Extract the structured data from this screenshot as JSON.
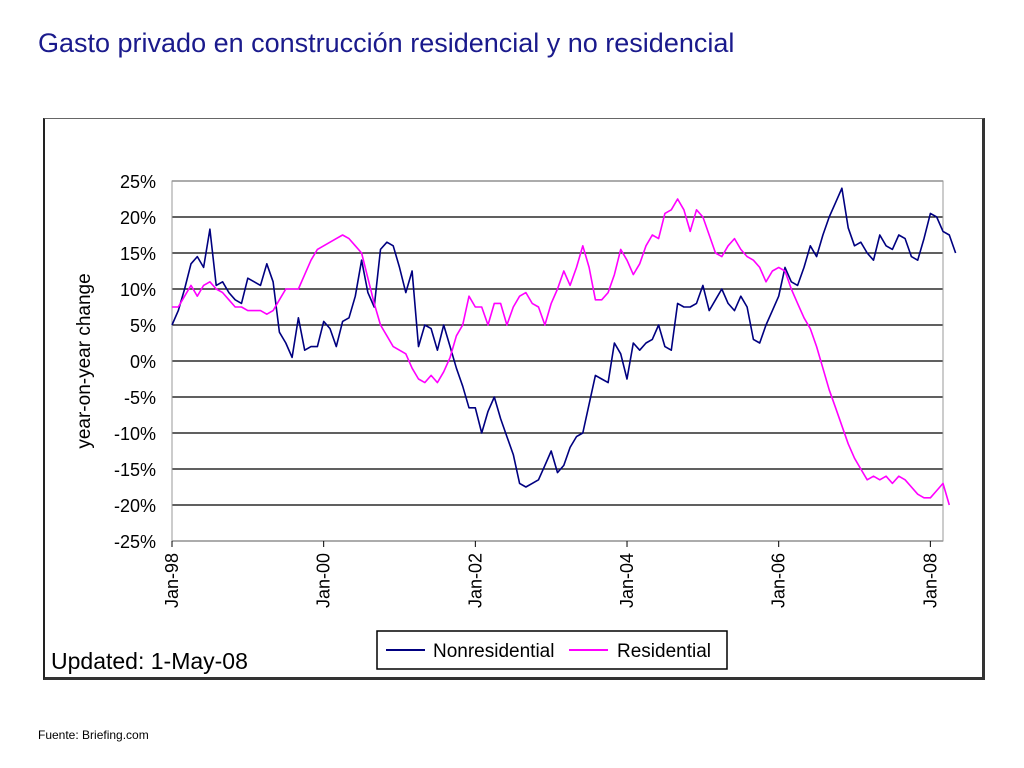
{
  "slide": {
    "title": "Gasto privado en construcción residencial y no residencial",
    "source": "Fuente: Briefing.com"
  },
  "chart_data": {
    "type": "line",
    "title": "",
    "xlabel": "",
    "ylabel": "year-on-year change",
    "ylim": [
      -25,
      25
    ],
    "xlim": [
      "1998-01",
      "2008-03"
    ],
    "y_ticks": [
      "25%",
      "20%",
      "15%",
      "10%",
      "5%",
      "0%",
      "-5%",
      "-10%",
      "-15%",
      "-20%",
      "-25%"
    ],
    "y_tick_values": [
      25,
      20,
      15,
      10,
      5,
      0,
      -5,
      -10,
      -15,
      -20,
      -25
    ],
    "x_ticks": [
      "Jan-98",
      "Jan-00",
      "Jan-02",
      "Jan-04",
      "Jan-06",
      "Jan-08"
    ],
    "x_tick_values": [
      "1998-01",
      "2000-01",
      "2002-01",
      "2004-01",
      "2006-01",
      "2008-01"
    ],
    "grid": true,
    "legend_position": "bottom-center",
    "annotation": "Updated:  1-May-08",
    "series": [
      {
        "name": "Nonresidential",
        "color": "#000080",
        "points": [
          [
            "1998-01",
            5
          ],
          [
            "1998-02",
            7
          ],
          [
            "1998-03",
            10
          ],
          [
            "1998-04",
            13.5
          ],
          [
            "1998-05",
            14.5
          ],
          [
            "1998-06",
            13
          ],
          [
            "1998-07",
            18.3
          ],
          [
            "1998-08",
            10.5
          ],
          [
            "1998-09",
            11
          ],
          [
            "1998-10",
            9.5
          ],
          [
            "1998-11",
            8.5
          ],
          [
            "1998-12",
            8
          ],
          [
            "1999-01",
            11.5
          ],
          [
            "1999-02",
            11
          ],
          [
            "1999-03",
            10.5
          ],
          [
            "1999-04",
            13.5
          ],
          [
            "1999-05",
            11
          ],
          [
            "1999-06",
            4
          ],
          [
            "1999-07",
            2.5
          ],
          [
            "1999-08",
            0.5
          ],
          [
            "1999-09",
            6
          ],
          [
            "1999-10",
            1.5
          ],
          [
            "1999-11",
            2
          ],
          [
            "1999-12",
            2
          ],
          [
            "2000-01",
            5.5
          ],
          [
            "2000-02",
            4.5
          ],
          [
            "2000-03",
            2
          ],
          [
            "2000-04",
            5.5
          ],
          [
            "2000-05",
            6
          ],
          [
            "2000-06",
            9
          ],
          [
            "2000-07",
            14
          ],
          [
            "2000-08",
            9.5
          ],
          [
            "2000-09",
            7.5
          ],
          [
            "2000-10",
            15.5
          ],
          [
            "2000-11",
            16.5
          ],
          [
            "2000-12",
            16
          ],
          [
            "2001-01",
            13
          ],
          [
            "2001-02",
            9.5
          ],
          [
            "2001-03",
            12.5
          ],
          [
            "2001-04",
            2
          ],
          [
            "2001-05",
            5
          ],
          [
            "2001-06",
            4.5
          ],
          [
            "2001-07",
            1.5
          ],
          [
            "2001-08",
            5
          ],
          [
            "2001-09",
            2
          ],
          [
            "2001-10",
            -1
          ],
          [
            "2001-11",
            -3.5
          ],
          [
            "2001-12",
            -6.5
          ],
          [
            "2002-01",
            -6.5
          ],
          [
            "2002-02",
            -10
          ],
          [
            "2002-03",
            -7
          ],
          [
            "2002-04",
            -5
          ],
          [
            "2002-05",
            -8
          ],
          [
            "2002-06",
            -10.5
          ],
          [
            "2002-07",
            -13
          ],
          [
            "2002-08",
            -17
          ],
          [
            "2002-09",
            -17.5
          ],
          [
            "2002-10",
            -17
          ],
          [
            "2002-11",
            -16.5
          ],
          [
            "2002-12",
            -14.5
          ],
          [
            "2003-01",
            -12.5
          ],
          [
            "2003-02",
            -15.5
          ],
          [
            "2003-03",
            -14.5
          ],
          [
            "2003-04",
            -12
          ],
          [
            "2003-05",
            -10.5
          ],
          [
            "2003-06",
            -10
          ],
          [
            "2003-07",
            -6
          ],
          [
            "2003-08",
            -2
          ],
          [
            "2003-09",
            -2.5
          ],
          [
            "2003-10",
            -3
          ],
          [
            "2003-11",
            2.5
          ],
          [
            "2003-12",
            1
          ],
          [
            "2004-01",
            -2.5
          ],
          [
            "2004-02",
            2.5
          ],
          [
            "2004-03",
            1.5
          ],
          [
            "2004-04",
            2.5
          ],
          [
            "2004-05",
            3
          ],
          [
            "2004-06",
            5
          ],
          [
            "2004-07",
            2
          ],
          [
            "2004-08",
            1.5
          ],
          [
            "2004-09",
            8
          ],
          [
            "2004-10",
            7.5
          ],
          [
            "2004-11",
            7.5
          ],
          [
            "2004-12",
            8
          ],
          [
            "2005-01",
            10.5
          ],
          [
            "2005-02",
            7
          ],
          [
            "2005-03",
            8.5
          ],
          [
            "2005-04",
            10
          ],
          [
            "2005-05",
            8
          ],
          [
            "2005-06",
            7
          ],
          [
            "2005-07",
            9
          ],
          [
            "2005-08",
            7.5
          ],
          [
            "2005-09",
            3
          ],
          [
            "2005-10",
            2.5
          ],
          [
            "2005-11",
            5
          ],
          [
            "2005-12",
            7
          ],
          [
            "2006-01",
            9
          ],
          [
            "2006-02",
            13
          ],
          [
            "2006-03",
            11
          ],
          [
            "2006-04",
            10.5
          ],
          [
            "2006-05",
            13
          ],
          [
            "2006-06",
            16
          ],
          [
            "2006-07",
            14.5
          ],
          [
            "2006-08",
            17.5
          ],
          [
            "2006-09",
            20
          ],
          [
            "2006-10",
            22
          ],
          [
            "2006-11",
            24
          ],
          [
            "2006-12",
            18.5
          ],
          [
            "2007-01",
            16
          ],
          [
            "2007-02",
            16.5
          ],
          [
            "2007-03",
            15
          ],
          [
            "2007-04",
            14
          ],
          [
            "2007-05",
            17.5
          ],
          [
            "2007-06",
            16
          ],
          [
            "2007-07",
            15.5
          ],
          [
            "2007-08",
            17.5
          ],
          [
            "2007-09",
            17
          ],
          [
            "2007-10",
            14.5
          ],
          [
            "2007-11",
            14
          ],
          [
            "2007-12",
            17
          ],
          [
            "2008-01",
            20.5
          ],
          [
            "2008-02",
            20
          ],
          [
            "2008-03",
            18
          ],
          [
            "2008-04",
            17.5
          ],
          [
            "2008-05",
            15
          ]
        ]
      },
      {
        "name": "Residential",
        "color": "#ff00ff",
        "points": [
          [
            "1998-01",
            7.5
          ],
          [
            "1998-02",
            7.5
          ],
          [
            "1998-03",
            9
          ],
          [
            "1998-04",
            10.5
          ],
          [
            "1998-05",
            9
          ],
          [
            "1998-06",
            10.5
          ],
          [
            "1998-07",
            11
          ],
          [
            "1998-08",
            10
          ],
          [
            "1998-09",
            9.5
          ],
          [
            "1998-10",
            8.5
          ],
          [
            "1998-11",
            7.5
          ],
          [
            "1998-12",
            7.5
          ],
          [
            "1999-01",
            7
          ],
          [
            "1999-02",
            7
          ],
          [
            "1999-03",
            7
          ],
          [
            "1999-04",
            6.5
          ],
          [
            "1999-05",
            7
          ],
          [
            "1999-06",
            8.5
          ],
          [
            "1999-07",
            10
          ],
          [
            "1999-08",
            10
          ],
          [
            "1999-09",
            10
          ],
          [
            "1999-10",
            12
          ],
          [
            "1999-11",
            14
          ],
          [
            "1999-12",
            15.5
          ],
          [
            "2000-01",
            16
          ],
          [
            "2000-02",
            16.5
          ],
          [
            "2000-03",
            17
          ],
          [
            "2000-04",
            17.5
          ],
          [
            "2000-05",
            17
          ],
          [
            "2000-06",
            16
          ],
          [
            "2000-07",
            15
          ],
          [
            "2000-08",
            11.5
          ],
          [
            "2000-09",
            8
          ],
          [
            "2000-10",
            5
          ],
          [
            "2000-11",
            3.5
          ],
          [
            "2000-12",
            2
          ],
          [
            "2001-01",
            1.5
          ],
          [
            "2001-02",
            1
          ],
          [
            "2001-03",
            -1
          ],
          [
            "2001-04",
            -2.5
          ],
          [
            "2001-05",
            -3
          ],
          [
            "2001-06",
            -2
          ],
          [
            "2001-07",
            -3
          ],
          [
            "2001-08",
            -1.5
          ],
          [
            "2001-09",
            0.5
          ],
          [
            "2001-10",
            3.5
          ],
          [
            "2001-11",
            5
          ],
          [
            "2001-12",
            9
          ],
          [
            "2002-01",
            7.5
          ],
          [
            "2002-02",
            7.5
          ],
          [
            "2002-03",
            5
          ],
          [
            "2002-04",
            8
          ],
          [
            "2002-05",
            8
          ],
          [
            "2002-06",
            5
          ],
          [
            "2002-07",
            7.5
          ],
          [
            "2002-08",
            9
          ],
          [
            "2002-09",
            9.5
          ],
          [
            "2002-10",
            8
          ],
          [
            "2002-11",
            7.5
          ],
          [
            "2002-12",
            5
          ],
          [
            "2003-01",
            8
          ],
          [
            "2003-02",
            10
          ],
          [
            "2003-03",
            12.5
          ],
          [
            "2003-04",
            10.5
          ],
          [
            "2003-05",
            13
          ],
          [
            "2003-06",
            16
          ],
          [
            "2003-07",
            13
          ],
          [
            "2003-08",
            8.5
          ],
          [
            "2003-09",
            8.5
          ],
          [
            "2003-10",
            9.5
          ],
          [
            "2003-11",
            12
          ],
          [
            "2003-12",
            15.5
          ],
          [
            "2004-01",
            14
          ],
          [
            "2004-02",
            12
          ],
          [
            "2004-03",
            13.5
          ],
          [
            "2004-04",
            16
          ],
          [
            "2004-05",
            17.5
          ],
          [
            "2004-06",
            17
          ],
          [
            "2004-07",
            20.5
          ],
          [
            "2004-08",
            21
          ],
          [
            "2004-09",
            22.5
          ],
          [
            "2004-10",
            21
          ],
          [
            "2004-11",
            18
          ],
          [
            "2004-12",
            21
          ],
          [
            "2005-01",
            20
          ],
          [
            "2005-02",
            17.5
          ],
          [
            "2005-03",
            15
          ],
          [
            "2005-04",
            14.5
          ],
          [
            "2005-05",
            16
          ],
          [
            "2005-06",
            17
          ],
          [
            "2005-07",
            15.5
          ],
          [
            "2005-08",
            14.5
          ],
          [
            "2005-09",
            14
          ],
          [
            "2005-10",
            13
          ],
          [
            "2005-11",
            11
          ],
          [
            "2005-12",
            12.5
          ],
          [
            "2006-01",
            13
          ],
          [
            "2006-02",
            12.5
          ],
          [
            "2006-03",
            10
          ],
          [
            "2006-04",
            8
          ],
          [
            "2006-05",
            6
          ],
          [
            "2006-06",
            4.5
          ],
          [
            "2006-07",
            2
          ],
          [
            "2006-08",
            -1
          ],
          [
            "2006-09",
            -4
          ],
          [
            "2006-10",
            -6.5
          ],
          [
            "2006-11",
            -9
          ],
          [
            "2006-12",
            -11.5
          ],
          [
            "2007-01",
            -13.5
          ],
          [
            "2007-02",
            -15
          ],
          [
            "2007-03",
            -16.5
          ],
          [
            "2007-04",
            -16
          ],
          [
            "2007-05",
            -16.5
          ],
          [
            "2007-06",
            -16
          ],
          [
            "2007-07",
            -17
          ],
          [
            "2007-08",
            -16
          ],
          [
            "2007-09",
            -16.5
          ],
          [
            "2007-10",
            -17.5
          ],
          [
            "2007-11",
            -18.5
          ],
          [
            "2007-12",
            -19
          ],
          [
            "2008-01",
            -19
          ],
          [
            "2008-02",
            -18
          ],
          [
            "2008-03",
            -17
          ],
          [
            "2008-04",
            -20
          ]
        ]
      }
    ]
  }
}
